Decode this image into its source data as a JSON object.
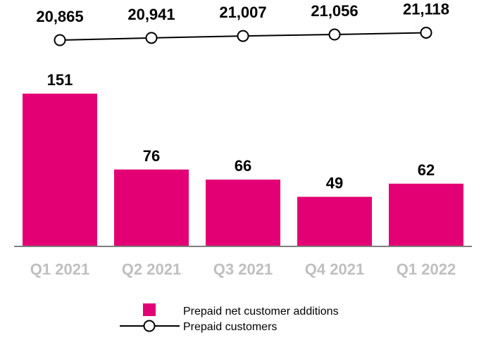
{
  "colors": {
    "bar": "#e20074",
    "line": "#000000",
    "category_text": "#bfbfbf",
    "value_text": "#000000"
  },
  "chart_data": {
    "type": "bar",
    "categories": [
      "Q1 2021",
      "Q2 2021",
      "Q3 2021",
      "Q4 2021",
      "Q1 2022"
    ],
    "series": [
      {
        "name": "Prepaid net customer additions",
        "type": "bar",
        "values": [
          151,
          76,
          66,
          49,
          62
        ],
        "labels": [
          "151",
          "76",
          "66",
          "49",
          "62"
        ]
      },
      {
        "name": "Prepaid customers",
        "type": "line",
        "values": [
          20865,
          20941,
          21007,
          21056,
          21118
        ],
        "labels": [
          "20,865",
          "20,941",
          "21,007",
          "21,056",
          "21,118"
        ]
      }
    ],
    "legend_position": "bottom",
    "grid": false
  }
}
